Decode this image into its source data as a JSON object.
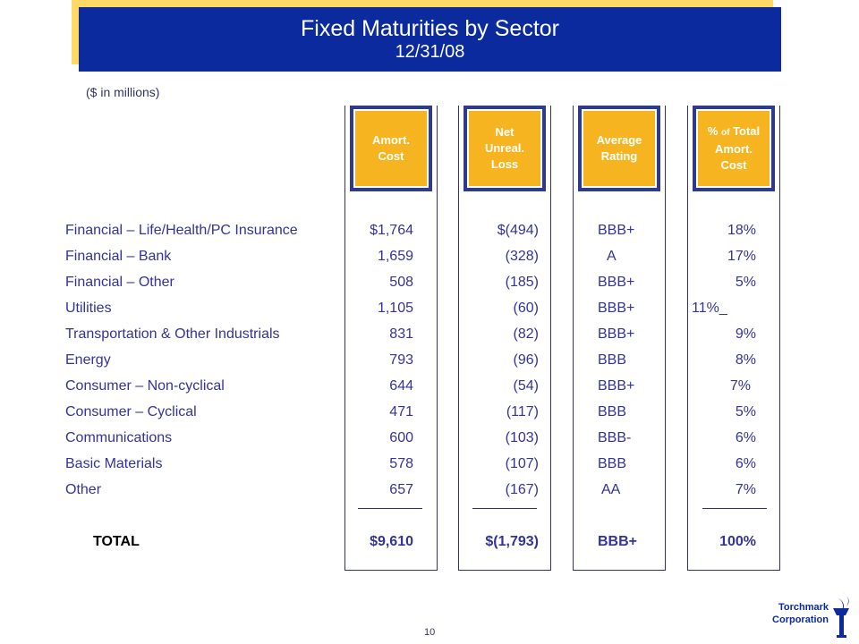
{
  "title": "Fixed Maturities by Sector",
  "subtitle": "12/31/08",
  "units": "($ in millions)",
  "headers": {
    "amort_cost": [
      "Amort.",
      "Cost"
    ],
    "net_unreal_loss": [
      "Net",
      "Unreal.",
      "Loss"
    ],
    "average_rating": [
      "Average",
      "Rating"
    ],
    "pct_total_prefix": "% ",
    "pct_total_of": "of",
    "pct_total_suffix": " Total",
    "pct_total_rest": [
      "Amort.",
      "Cost"
    ]
  },
  "rows": [
    {
      "sector": "Financial – Life/Health/PC Insurance",
      "amort_cost": "$1,764",
      "net_unreal_loss": "$(494)",
      "rating": "BBB+",
      "pct": "18%"
    },
    {
      "sector": "Financial – Bank",
      "amort_cost": "1,659",
      "net_unreal_loss": "(328)",
      "rating": "A",
      "pct": "17%"
    },
    {
      "sector": "Financial – Other",
      "amort_cost": "508",
      "net_unreal_loss": "(185)",
      "rating": "BBB+",
      "pct": "5%"
    },
    {
      "sector": "Utilities",
      "amort_cost": "1,105",
      "net_unreal_loss": "(60)",
      "rating": "BBB+",
      "pct": "11%_"
    },
    {
      "sector": "Transportation & Other Industrials",
      "amort_cost": "831",
      "net_unreal_loss": "(82)",
      "rating": "BBB+",
      "pct": "9%"
    },
    {
      "sector": "Energy",
      "amort_cost": "793",
      "net_unreal_loss": "(96)",
      "rating": "BBB",
      "pct": "8%"
    },
    {
      "sector": "Consumer – Non-cyclical",
      "amort_cost": "644",
      "net_unreal_loss": "(54)",
      "rating": "BBB+",
      "pct": "7%"
    },
    {
      "sector": "Consumer – Cyclical",
      "amort_cost": "471",
      "net_unreal_loss": "(117)",
      "rating": "BBB",
      "pct": "5%"
    },
    {
      "sector": "Communications",
      "amort_cost": "600",
      "net_unreal_loss": "(103)",
      "rating": "BBB-",
      "pct": "6%"
    },
    {
      "sector": "Basic Materials",
      "amort_cost": "578",
      "net_unreal_loss": "(107)",
      "rating": "BBB",
      "pct": "6%"
    },
    {
      "sector": "Other",
      "amort_cost": "657",
      "net_unreal_loss": "(167)",
      "rating": "AA",
      "pct": "7%"
    }
  ],
  "total": {
    "label": "TOTAL",
    "amort_cost": "$9,610",
    "net_unreal_loss": "$(1,793)",
    "rating": "BBB+",
    "pct": "100%"
  },
  "footer": {
    "page_number": "10",
    "company_line1": "Torchmark",
    "company_line2": "Corporation",
    "logo_icon": "torch-icon"
  },
  "colors": {
    "title_bg": "#0A2A9E",
    "title_shadow": "#FFD966",
    "header_gold": "#F7B421",
    "text": "#333399"
  }
}
